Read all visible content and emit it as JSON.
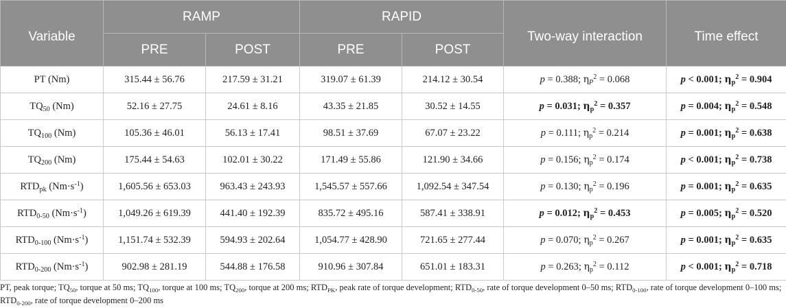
{
  "header": {
    "variable": "Variable",
    "ramp": "RAMP",
    "rapid": "RAPID",
    "interaction": "Two-way interaction",
    "time_effect": "Time effect",
    "pre": "PRE",
    "post": "POST"
  },
  "rows": [
    {
      "var": {
        "base": "PT",
        "sub": "",
        "unit": " (Nm)"
      },
      "ramp_pre": "315.44 ± 56.76",
      "ramp_post": "217.59 ± 31.21",
      "rapid_pre": "319.07 ± 61.39",
      "rapid_post": "214.12 ± 30.54",
      "interaction": {
        "p_op": "=",
        "p": "0.388",
        "eta_sub": "P",
        "eta_sub_italic": true,
        "eta": "0.068",
        "bold": false
      },
      "time": {
        "p_op": "<",
        "p": "0.001",
        "eta_sub": "p",
        "eta_sub_italic": false,
        "eta": "0.904",
        "bold": true
      }
    },
    {
      "var": {
        "base": "TQ",
        "sub": "50",
        "unit": " (Nm)"
      },
      "ramp_pre": "52.16 ± 27.75",
      "ramp_post": "24.61 ± 8.16",
      "rapid_pre": "43.35 ± 21.85",
      "rapid_post": "30.52 ± 14.55",
      "interaction": {
        "p_op": "=",
        "p": "0.031",
        "eta_sub": "p",
        "eta_sub_italic": false,
        "eta": "0.357",
        "bold": true
      },
      "time": {
        "p_op": "=",
        "p": "0.004",
        "eta_sub": "p",
        "eta_sub_italic": false,
        "eta": "0.548",
        "bold": true
      }
    },
    {
      "var": {
        "base": "TQ",
        "sub": "100",
        "unit": " (Nm)"
      },
      "ramp_pre": "105.36 ± 46.01",
      "ramp_post": "56.13 ± 17.41",
      "rapid_pre": "98.51 ± 37.69",
      "rapid_post": "67.07 ± 23.22",
      "interaction": {
        "p_op": "=",
        "p": "0.111",
        "eta_sub": "p",
        "eta_sub_italic": false,
        "eta": "0.214",
        "bold": false
      },
      "time": {
        "p_op": "=",
        "p": "0.001",
        "eta_sub": "p",
        "eta_sub_italic": false,
        "eta": "0.638",
        "bold": true
      }
    },
    {
      "var": {
        "base": "TQ",
        "sub": "200",
        "unit": " (Nm)"
      },
      "ramp_pre": "175.44 ± 54.63",
      "ramp_post": "102.01 ± 30.22",
      "rapid_pre": "171.49 ± 55.86",
      "rapid_post": "121.90 ± 34.66",
      "interaction": {
        "p_op": "=",
        "p": "0.156",
        "eta_sub": "p",
        "eta_sub_italic": false,
        "eta": "0.174",
        "bold": false
      },
      "time": {
        "p_op": "<",
        "p": "0.001",
        "eta_sub": "p",
        "eta_sub_italic": false,
        "eta": "0.738",
        "bold": true
      }
    },
    {
      "var": {
        "base": "RTD",
        "sub": "pk",
        "unit": " (Nm·s",
        "sup": "-1",
        "unit_end": ")"
      },
      "ramp_pre": "1,605.56 ± 653.03",
      "ramp_post": "963.43 ± 243.93",
      "rapid_pre": "1,545.57 ± 557.66",
      "rapid_post": "1,092.54 ± 347.54",
      "interaction": {
        "p_op": "=",
        "p": "0.130",
        "eta_sub": "p",
        "eta_sub_italic": false,
        "eta": "0.196",
        "bold": false
      },
      "time": {
        "p_op": "=",
        "p": "0.001",
        "eta_sub": "p",
        "eta_sub_italic": false,
        "eta": "0.635",
        "bold": true
      }
    },
    {
      "var": {
        "base": "RTD",
        "sub": "0-50",
        "unit": " (Nm·s",
        "sup": "-1",
        "unit_end": ")"
      },
      "ramp_pre": "1,049.26 ± 619.39",
      "ramp_post": "441.40 ± 192.39",
      "rapid_pre": "835.72 ± 495.16",
      "rapid_post": "587.41 ± 338.91",
      "interaction": {
        "p_op": "=",
        "p": "0.012",
        "eta_sub": "p",
        "eta_sub_italic": false,
        "eta": "0.453",
        "bold": true
      },
      "time": {
        "p_op": "=",
        "p": "0.005",
        "eta_sub": "p",
        "eta_sub_italic": false,
        "eta": "0.520",
        "bold": true
      }
    },
    {
      "var": {
        "base": "RTD",
        "sub": "0-100",
        "unit": " (Nm·s",
        "sup": "-1",
        "unit_end": ")"
      },
      "ramp_pre": "1,151.74 ± 532.39",
      "ramp_post": "594.93 ± 202.64",
      "rapid_pre": "1,054.77 ± 428.90",
      "rapid_post": "721.65 ± 277.44",
      "interaction": {
        "p_op": "=",
        "p": "0.070",
        "eta_sub": "p",
        "eta_sub_italic": false,
        "eta": "0.267",
        "bold": false
      },
      "time": {
        "p_op": "=",
        "p": "0.001",
        "eta_sub": "p",
        "eta_sub_italic": false,
        "eta": "0.635",
        "bold": true
      }
    },
    {
      "var": {
        "base": "RTD",
        "sub": "0-200",
        "unit": " (Nm·s",
        "sup": "-1",
        "unit_end": ")"
      },
      "ramp_pre": "902.98 ± 281.19",
      "ramp_post": "544.88 ± 176.58",
      "rapid_pre": "910.96 ± 307.84",
      "rapid_post": "651.01 ± 183.31",
      "interaction": {
        "p_op": "=",
        "p": "0.263",
        "eta_sub": "p",
        "eta_sub_italic": false,
        "eta": "0.112",
        "bold": false
      },
      "time": {
        "p_op": "<",
        "p": "0.001",
        "eta_sub": "p",
        "eta_sub_italic": false,
        "eta": "0.718",
        "bold": true
      }
    }
  ],
  "footnote": {
    "pt": "PT, peak torque; ",
    "tq50": "TQ",
    "tq50_sub": "50",
    "tq50_text": ", torque at 50 ms; ",
    "tq100": "TQ",
    "tq100_sub": "100",
    "tq100_text": ", torque at 100 ms; ",
    "tq200": "TQ",
    "tq200_sub": "200",
    "tq200_text": ", torque at 200 ms; ",
    "rtdpk": "RTD",
    "rtdpk_sub": "PK",
    "rtdpk_text": ", peak rate of torque development; ",
    "rtd50": "RTD",
    "rtd50_sub": "0-50",
    "rtd50_text": ", rate of torque development 0–50 ms; ",
    "rtd100": "RTD",
    "rtd100_sub": "0-100",
    "rtd100_text": ", rate of torque development 0–100 ms; ",
    "rtd200": "RTD",
    "rtd200_sub": "0-200",
    "rtd200_text": ", rate of torque development 0–200 ms",
    "p_symbol": "p",
    "eta_symbol": "η",
    "eta_power": "2"
  }
}
